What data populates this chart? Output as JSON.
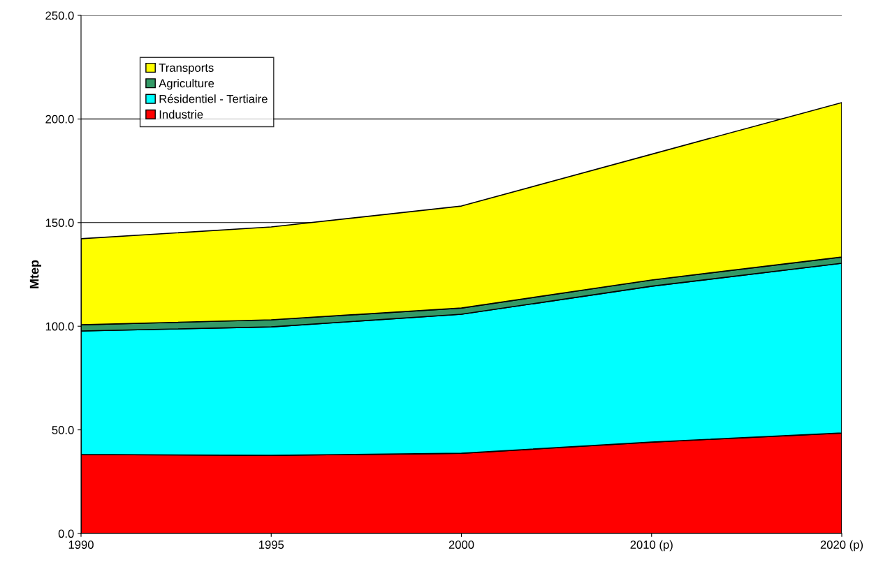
{
  "chart_data": {
    "type": "area",
    "stacked": true,
    "ylabel": "Mtep",
    "categories": [
      "1990",
      "1995",
      "2000",
      "2010 (p)",
      "2020 (p)"
    ],
    "series": [
      {
        "name": "Industrie",
        "color": "#ff0000",
        "values": [
          38.1,
          37.7,
          38.7,
          44.1,
          48.5
        ]
      },
      {
        "name": "Résidentiel - Tertiaire",
        "color": "#00ffff",
        "values": [
          59.6,
          62.0,
          67.1,
          75.2,
          81.9
        ]
      },
      {
        "name": "Agriculture",
        "color": "#339966",
        "values": [
          3.0,
          3.4,
          3.0,
          3.0,
          3.0
        ]
      },
      {
        "name": "Transports",
        "color": "#ffff00",
        "values": [
          41.5,
          44.8,
          49.2,
          60.7,
          74.5
        ]
      }
    ],
    "ylim": [
      0,
      250
    ],
    "yticks": [
      {
        "value": 0,
        "label": "0.0"
      },
      {
        "value": 50,
        "label": "50.0"
      },
      {
        "value": 100,
        "label": "100.0"
      },
      {
        "value": 150,
        "label": "150.0"
      },
      {
        "value": 200,
        "label": "200.0"
      },
      {
        "value": 250,
        "label": "250.0"
      }
    ],
    "grid": "y",
    "legend": "top left"
  }
}
